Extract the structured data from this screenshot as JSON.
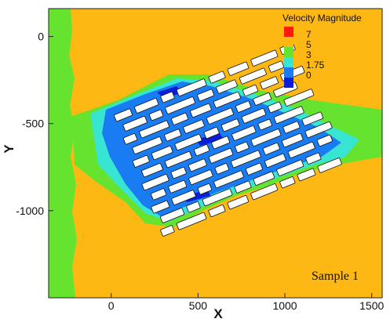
{
  "chart_data": {
    "type": "heatmap",
    "title": "",
    "xlabel": "X",
    "ylabel": "Y",
    "xlim": [
      -360,
      1560
    ],
    "ylim": [
      -1500,
      160
    ],
    "x_ticks": [
      0,
      500,
      1000,
      1500
    ],
    "y_ticks": [
      0,
      -500,
      -1000
    ],
    "colorbar": {
      "title": "Velocity Magnitude",
      "levels": [
        {
          "label": "7",
          "value": 7,
          "color": "#ff1a0f"
        },
        {
          "label": "5",
          "value": 5,
          "color": "#fdb813"
        },
        {
          "label": "3",
          "value": 3,
          "color": "#66e32e"
        },
        {
          "label": "1.75",
          "value": 1.75,
          "color": "#38e5d3"
        },
        {
          "label": "0",
          "value": 0,
          "color": "#1a7cf2"
        },
        {
          "label": "",
          "value": -1,
          "color": "#0a1ed8"
        }
      ]
    },
    "annotation": "Sample 1",
    "regions": {
      "background_level": 5,
      "inlet_band_level": 3,
      "wake_level": 3,
      "inner_wake_level": 1.75,
      "array_level": 0
    },
    "obstacle_array": {
      "rotation_deg": -22,
      "center": [
        620,
        -620
      ],
      "rows": 11,
      "row_spacing": 58,
      "obstacle_height": 22
    }
  }
}
